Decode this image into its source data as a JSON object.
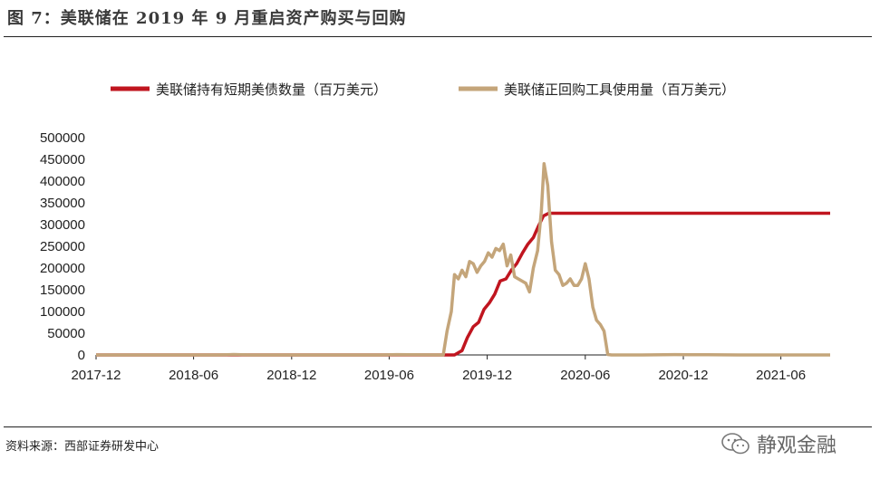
{
  "header": {
    "title": "图 7：美联储在 2019 年 9 月重启资产购买与回购"
  },
  "footer": {
    "source": "资料来源：西部证券研发中心",
    "watermark": "静观金融",
    "watermark_icon": "wechat-icon"
  },
  "colors": {
    "soma": "#c0151f",
    "repo": "#c4a57a",
    "axis": "#222222"
  },
  "chart_data": {
    "type": "line",
    "title": "",
    "xlabel": "",
    "ylabel": "",
    "ylim": [
      0,
      500000
    ],
    "yticks": [
      "500000",
      "450000",
      "400000",
      "350000",
      "300000",
      "250000",
      "200000",
      "150000",
      "100000",
      "50000",
      "0"
    ],
    "xticks": [
      "2017-12",
      "2018-06",
      "2018-12",
      "2019-06",
      "2019-12",
      "2020-06",
      "2020-12",
      "2021-06"
    ],
    "x_range": [
      "2017-12",
      "2021-09"
    ],
    "legend_position": "top",
    "grid": false,
    "series": [
      {
        "name": "美联储持有短期美债数量（百万美元）",
        "color": "#c0151f",
        "points": [
          [
            "2017-12-01",
            0
          ],
          [
            "2019-08-15",
            0
          ],
          [
            "2019-09-15",
            0
          ],
          [
            "2019-10-01",
            0
          ],
          [
            "2019-10-15",
            10000
          ],
          [
            "2019-10-25",
            40000
          ],
          [
            "2019-11-05",
            65000
          ],
          [
            "2019-11-15",
            75000
          ],
          [
            "2019-11-25",
            105000
          ],
          [
            "2019-12-05",
            120000
          ],
          [
            "2019-12-15",
            140000
          ],
          [
            "2019-12-25",
            170000
          ],
          [
            "2020-01-05",
            175000
          ],
          [
            "2020-01-15",
            195000
          ],
          [
            "2020-01-25",
            210000
          ],
          [
            "2020-02-05",
            235000
          ],
          [
            "2020-02-15",
            255000
          ],
          [
            "2020-02-25",
            270000
          ],
          [
            "2020-03-05",
            295000
          ],
          [
            "2020-03-15",
            320000
          ],
          [
            "2020-03-25",
            326000
          ],
          [
            "2021-09-01",
            326000
          ]
        ]
      },
      {
        "name": "美联储正回购工具使用量（百万美元）",
        "color": "#c4a57a",
        "points": [
          [
            "2017-12-01",
            0
          ],
          [
            "2018-07-15",
            0
          ],
          [
            "2018-08-15",
            1000
          ],
          [
            "2018-09-15",
            0
          ],
          [
            "2019-05-15",
            0
          ],
          [
            "2019-06-15",
            800
          ],
          [
            "2019-09-10",
            0
          ],
          [
            "2019-09-17",
            55000
          ],
          [
            "2019-09-25",
            100000
          ],
          [
            "2019-10-01",
            185000
          ],
          [
            "2019-10-08",
            175000
          ],
          [
            "2019-10-15",
            195000
          ],
          [
            "2019-10-22",
            180000
          ],
          [
            "2019-10-29",
            215000
          ],
          [
            "2019-11-05",
            210000
          ],
          [
            "2019-11-12",
            190000
          ],
          [
            "2019-11-19",
            205000
          ],
          [
            "2019-11-26",
            215000
          ],
          [
            "2019-12-03",
            235000
          ],
          [
            "2019-12-10",
            225000
          ],
          [
            "2019-12-17",
            245000
          ],
          [
            "2019-12-24",
            240000
          ],
          [
            "2019-12-31",
            255000
          ],
          [
            "2020-01-07",
            205000
          ],
          [
            "2020-01-14",
            230000
          ],
          [
            "2020-01-21",
            180000
          ],
          [
            "2020-01-28",
            175000
          ],
          [
            "2020-02-04",
            170000
          ],
          [
            "2020-02-11",
            165000
          ],
          [
            "2020-02-18",
            145000
          ],
          [
            "2020-02-25",
            200000
          ],
          [
            "2020-03-04",
            240000
          ],
          [
            "2020-03-11",
            330000
          ],
          [
            "2020-03-16",
            440000
          ],
          [
            "2020-03-23",
            390000
          ],
          [
            "2020-03-30",
            260000
          ],
          [
            "2020-04-06",
            195000
          ],
          [
            "2020-04-13",
            185000
          ],
          [
            "2020-04-20",
            160000
          ],
          [
            "2020-04-27",
            165000
          ],
          [
            "2020-05-04",
            175000
          ],
          [
            "2020-05-11",
            160000
          ],
          [
            "2020-05-18",
            160000
          ],
          [
            "2020-05-25",
            175000
          ],
          [
            "2020-06-01",
            210000
          ],
          [
            "2020-06-08",
            175000
          ],
          [
            "2020-06-15",
            110000
          ],
          [
            "2020-06-22",
            80000
          ],
          [
            "2020-06-29",
            70000
          ],
          [
            "2020-07-06",
            55000
          ],
          [
            "2020-07-13",
            1000
          ],
          [
            "2020-07-20",
            0
          ],
          [
            "2020-09-15",
            0
          ],
          [
            "2020-11-15",
            800
          ],
          [
            "2021-01-15",
            500
          ],
          [
            "2021-03-15",
            0
          ],
          [
            "2021-09-01",
            0
          ]
        ]
      }
    ]
  }
}
